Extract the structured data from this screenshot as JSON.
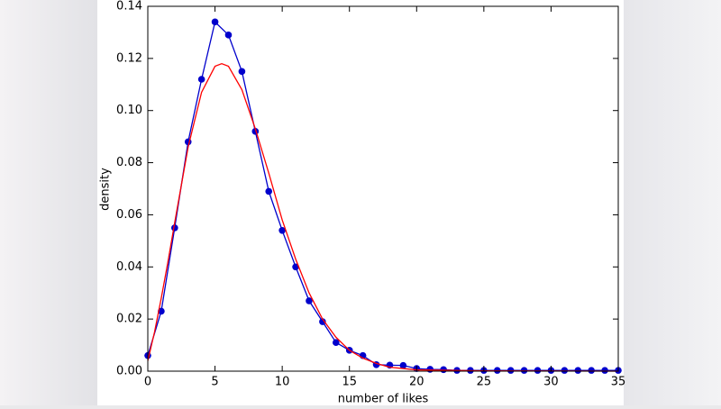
{
  "chart_data": {
    "type": "line",
    "xlabel": "number of likes",
    "ylabel": "density",
    "xlim": [
      0,
      35
    ],
    "ylim": [
      0,
      0.14
    ],
    "xticks": [
      0,
      5,
      10,
      15,
      20,
      25,
      30,
      35
    ],
    "yticks": [
      {
        "value": 0,
        "label": "0.00"
      },
      0.02,
      0.04,
      0.06,
      0.08,
      {
        "value": 0.1,
        "label": "0.10"
      },
      0.12,
      0.14
    ],
    "series": [
      {
        "color": "#0000cc",
        "marker": true,
        "x": [
          0,
          1,
          2,
          3,
          4,
          5,
          6,
          7,
          8,
          9,
          10,
          11,
          12,
          13,
          14,
          15,
          16,
          17,
          18,
          19,
          20,
          21,
          22,
          23,
          24,
          25,
          26,
          27,
          28,
          29,
          30,
          31,
          32,
          33,
          34,
          35
        ],
        "values": [
          0.006,
          0.023,
          0.055,
          0.088,
          0.112,
          0.134,
          0.129,
          0.115,
          0.092,
          0.069,
          0.054,
          0.04,
          0.027,
          0.019,
          0.011,
          0.008,
          0.006,
          0.0025,
          0.0023,
          0.0022,
          0.001,
          0.0007,
          0.0006,
          0.0003,
          0.0003,
          0.0003,
          0.0003,
          0.0003,
          0.0003,
          0.0003,
          0.0003,
          0.0003,
          0.0003,
          0.0003,
          0.0003,
          0.0003
        ]
      },
      {
        "color": "#ff0000",
        "marker": false,
        "x": [
          0,
          0.5,
          1,
          1.5,
          2,
          3,
          4,
          5,
          5.5,
          6,
          7,
          8,
          9,
          10,
          11,
          12,
          13,
          14,
          15,
          16,
          17,
          18,
          20,
          25,
          35
        ],
        "values": [
          0.004,
          0.015,
          0.028,
          0.042,
          0.057,
          0.086,
          0.107,
          0.117,
          0.118,
          0.117,
          0.108,
          0.093,
          0.076,
          0.058,
          0.043,
          0.03,
          0.02,
          0.013,
          0.008,
          0.005,
          0.003,
          0.0015,
          0.0005,
          0.0001,
          0
        ]
      }
    ]
  }
}
